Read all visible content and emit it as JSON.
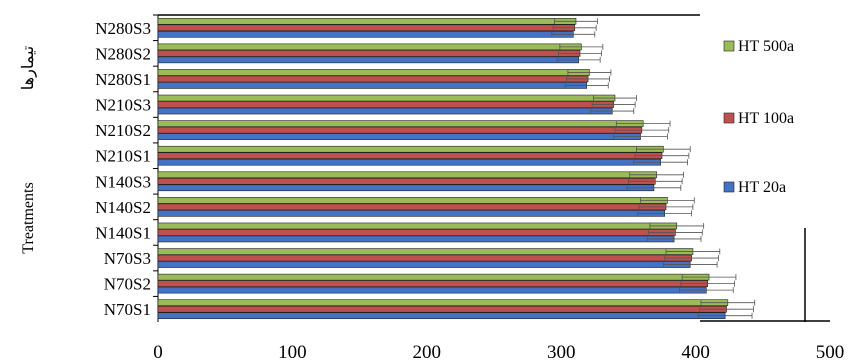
{
  "chart_data": {
    "type": "bar",
    "orientation": "horizontal",
    "categories": [
      "N70S1",
      "N70S2",
      "N70S3",
      "N140S1",
      "N140S2",
      "N140S3",
      "N210S1",
      "N210S2",
      "N210S3",
      "N280S1",
      "N280S2",
      "N280S3"
    ],
    "series": [
      {
        "name": "HT 20a",
        "color": "#4472c4",
        "values": [
          422,
          408,
          396,
          384,
          377,
          369,
          374,
          359,
          338,
          319,
          313,
          309
        ],
        "errors": [
          20,
          20,
          20,
          20,
          20,
          20,
          20,
          20,
          16,
          16,
          16,
          16
        ]
      },
      {
        "name": "HT 100a",
        "color": "#c0504d",
        "values": [
          423,
          409,
          397,
          385,
          378,
          370,
          375,
          360,
          339,
          320,
          314,
          310
        ],
        "errors": [
          20,
          20,
          20,
          20,
          20,
          20,
          20,
          20,
          16,
          16,
          16,
          16
        ]
      },
      {
        "name": "HT 500a",
        "color": "#9bbb59",
        "values": [
          424,
          410,
          398,
          386,
          379,
          371,
          376,
          361,
          340,
          321,
          315,
          311
        ],
        "errors": [
          20,
          20,
          20,
          20,
          20,
          20,
          20,
          20,
          16,
          16,
          16,
          16
        ]
      }
    ],
    "xlim": [
      0,
      500
    ],
    "xticks": [
      0,
      100,
      200,
      300,
      400,
      500
    ],
    "ylabel": "Treatments",
    "ylabel_fa": "تیمارها",
    "legend_position": "right",
    "grid": false
  }
}
